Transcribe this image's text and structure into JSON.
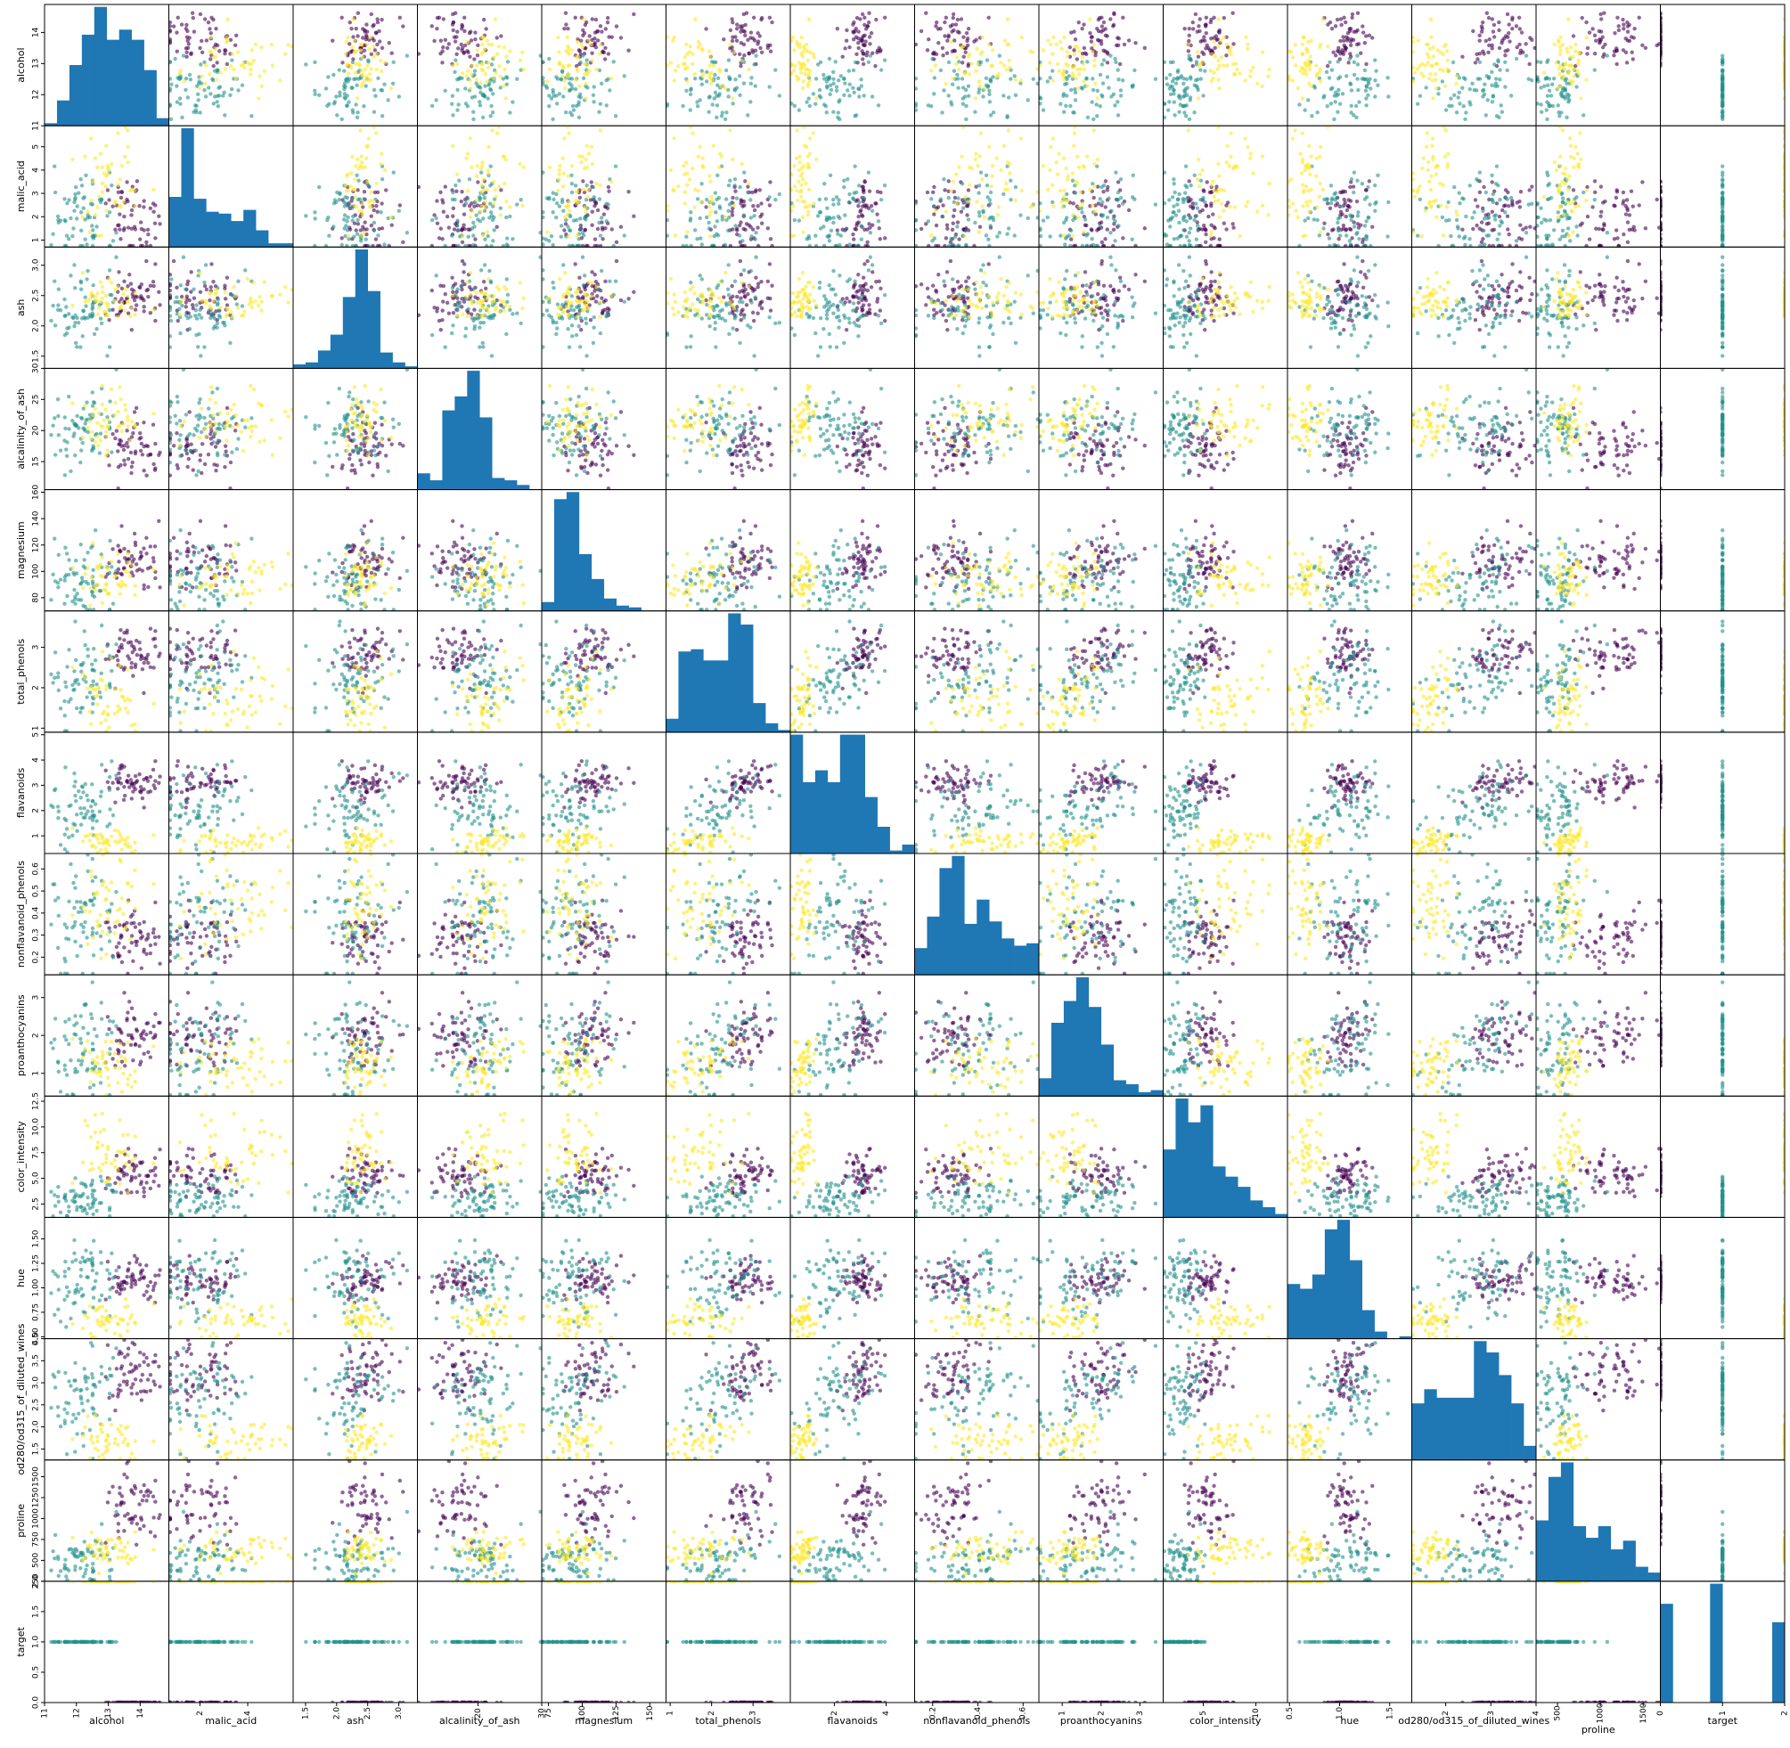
{
  "chart_data": {
    "type": "scatter",
    "variables": [
      "alcohol",
      "malic_acid",
      "ash",
      "alcalinity_of_ash",
      "magnesium",
      "total_phenols",
      "flavanoids",
      "nonflavanoid_phenols",
      "proanthocyanins",
      "color_intensity",
      "hue",
      "od280/od315_of_diluted_wines",
      "proline",
      "target"
    ],
    "ranges": [
      [
        11,
        14.9
      ],
      [
        0.7,
        5.9
      ],
      [
        1.3,
        3.3
      ],
      [
        10.5,
        30
      ],
      [
        70,
        162
      ],
      [
        0.9,
        3.9
      ],
      [
        0.3,
        5.1
      ],
      [
        0.12,
        0.67
      ],
      [
        0.4,
        3.6
      ],
      [
        1.2,
        13
      ],
      [
        0.48,
        1.72
      ],
      [
        1.25,
        4.0
      ],
      [
        250,
        1700
      ],
      [
        0,
        2
      ]
    ],
    "ticks": {
      "alcohol": [
        11,
        12,
        13,
        14
      ],
      "malic_acid": [
        1,
        2,
        3,
        4,
        5
      ],
      "ash": [
        1.5,
        2.0,
        2.5,
        3.0
      ],
      "alcalinity_of_ash": [
        15,
        20,
        25,
        30
      ],
      "magnesium": [
        80,
        100,
        120,
        140,
        160
      ],
      "total_phenols": [
        1,
        2,
        3
      ],
      "flavanoids": [
        1,
        2,
        3,
        4,
        5
      ],
      "nonflavanoid_phenols": [
        0.2,
        0.3,
        0.4,
        0.5,
        0.6
      ],
      "proanthocyanins": [
        1,
        2,
        3
      ],
      "color_intensity": [
        2.5,
        5.0,
        7.5,
        10.0,
        12.5
      ],
      "hue": [
        0.5,
        0.75,
        1.0,
        1.25,
        1.5
      ],
      "od280/od315_of_diluted_wines": [
        1.5,
        2.0,
        2.5,
        3.0,
        3.5,
        4.0
      ],
      "proline": [
        250,
        500,
        750,
        1000,
        1250,
        1500
      ],
      "target": [
        0.0,
        0.5,
        1.0,
        1.5,
        2.0
      ]
    },
    "xtick_labels": {
      "alcohol": [
        "11",
        "12",
        "13",
        "14"
      ],
      "malic_acid": [
        "2",
        "4"
      ],
      "ash": [
        "1.5",
        "2.0",
        "2.5",
        "3.0"
      ],
      "alcalinity_of_ash": [
        "20",
        "30"
      ],
      "magnesium": [
        "75",
        "100",
        "125",
        "150"
      ],
      "total_phenols": [
        "1",
        "2",
        "3"
      ],
      "flavanoids": [
        "2",
        "4"
      ],
      "nonflavanoid_phenols": [
        "0.2",
        "0.4",
        "0.6"
      ],
      "proanthocyanins": [
        "1",
        "2",
        "3"
      ],
      "color_intensity": [
        "5",
        "10"
      ],
      "hue": [
        "0.5",
        "1.0",
        "1.5"
      ],
      "od280/od315_of_diluted_wines": [
        "2",
        "3",
        "4"
      ],
      "proline": [
        "500",
        "1000",
        "1500"
      ],
      "target": [
        "0",
        "1",
        "2"
      ]
    },
    "xtick_values": {
      "alcohol": [
        11,
        12,
        13,
        14
      ],
      "malic_acid": [
        2,
        4
      ],
      "ash": [
        1.5,
        2.0,
        2.5,
        3.0
      ],
      "alcalinity_of_ash": [
        20,
        30
      ],
      "magnesium": [
        75,
        100,
        125,
        150
      ],
      "total_phenols": [
        1,
        2,
        3
      ],
      "flavanoids": [
        2,
        4
      ],
      "nonflavanoid_phenols": [
        0.2,
        0.4,
        0.6
      ],
      "proanthocyanins": [
        1,
        2,
        3
      ],
      "color_intensity": [
        5,
        10
      ],
      "hue": [
        0.5,
        1.0,
        1.5
      ],
      "od280/od315_of_diluted_wines": [
        2,
        3,
        4
      ],
      "proline": [
        500,
        1000,
        1500
      ],
      "target": [
        0,
        1,
        2
      ]
    },
    "ytick_labels": {
      "alcohol": [
        "11",
        "12",
        "13",
        "14"
      ],
      "malic_acid": [
        "1",
        "2",
        "3",
        "4",
        "5"
      ],
      "ash": [
        "1.5",
        "2.0",
        "2.5",
        "3.0"
      ],
      "alcalinity_of_ash": [
        "15",
        "20",
        "25",
        "30"
      ],
      "magnesium": [
        "80",
        "100",
        "120",
        "140",
        "160"
      ],
      "total_phenols": [
        "1",
        "2",
        "3"
      ],
      "flavanoids": [
        "1",
        "2",
        "3",
        "4",
        "5"
      ],
      "nonflavanoid_phenols": [
        "0.2",
        "0.3",
        "0.4",
        "0.5",
        "0.6"
      ],
      "proanthocyanins": [
        "1",
        "2",
        "3"
      ],
      "color_intensity": [
        "2.5",
        "5.0",
        "7.5",
        "10.0",
        "12.5"
      ],
      "hue": [
        "0.50",
        "0.75",
        "1.00",
        "1.25",
        "1.50"
      ],
      "od280/od315_of_diluted_wines": [
        "1.5",
        "2.0",
        "2.5",
        "3.0",
        "3.5",
        "4.0"
      ],
      "proline": [
        "250",
        "500",
        "750",
        "1000",
        "1250",
        "1500"
      ],
      "target": [
        "0.0",
        "0.5",
        "1.0",
        "1.5",
        "2.0"
      ]
    },
    "class_colors": [
      "#440154",
      "#21918c",
      "#fde725"
    ],
    "histogram_color": "#1f77b4",
    "marker_alpha": 0.6,
    "diagonal": "hist",
    "histograms": {
      "alcohol": [
        1,
        10,
        24,
        36,
        47,
        34,
        38,
        34,
        22,
        3
      ],
      "malic_acid": [
        27,
        64,
        26,
        19,
        18,
        14,
        20,
        9,
        2,
        2
      ],
      "ash": [
        2,
        3,
        9,
        17,
        36,
        60,
        39,
        8,
        3,
        1
      ],
      "alcalinity_of_ash": [
        7,
        4,
        34,
        40,
        51,
        31,
        5,
        4,
        2,
        0
      ],
      "magnesium": [
        5,
        63,
        67,
        32,
        18,
        7,
        3,
        2,
        0,
        0
      ],
      "total_phenols": [
        6,
        36,
        37,
        32,
        32,
        53,
        48,
        13,
        4,
        1
      ],
      "flavanoids": [
        40,
        24,
        28,
        24,
        40,
        40,
        19,
        9,
        1,
        3
      ],
      "nonflavanoid_phenols": [
        11,
        24,
        44,
        49,
        21,
        31,
        22,
        15,
        12,
        13
      ],
      "proanthocyanins": [
        9,
        37,
        48,
        60,
        45,
        26,
        8,
        6,
        2,
        3
      ],
      "color_intensity": [
        20,
        35,
        28,
        33,
        15,
        12,
        9,
        5,
        3,
        1
      ],
      "hue": [
        23,
        21,
        27,
        46,
        50,
        33,
        12,
        3,
        0,
        1
      ],
      "od280/od315_of_diluted_wines": [
        20,
        25,
        22,
        22,
        22,
        42,
        38,
        30,
        20,
        5
      ],
      "proline": [
        21,
        36,
        41,
        19,
        15,
        19,
        11,
        14,
        5,
        3
      ],
      "target": [
        59,
        0,
        0,
        0,
        71,
        0,
        0,
        0,
        0,
        48
      ]
    }
  }
}
